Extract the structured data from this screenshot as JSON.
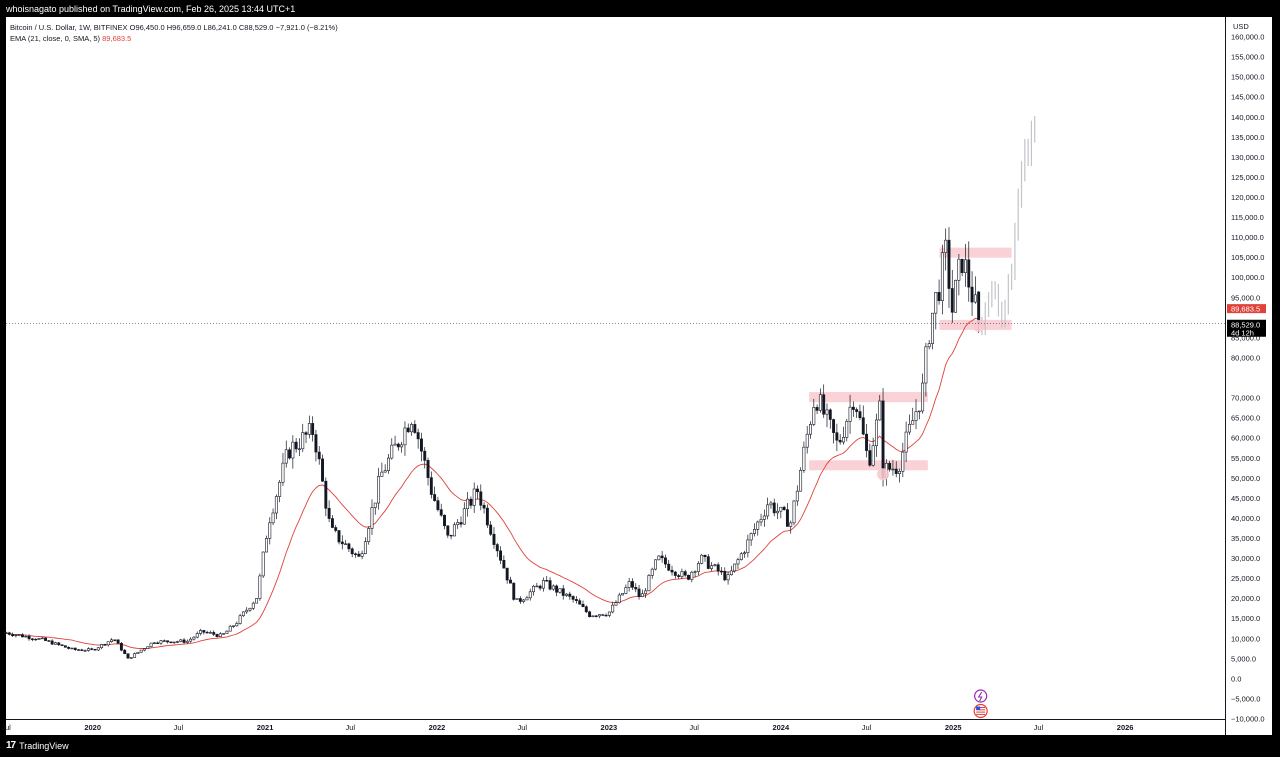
{
  "header": {
    "publish_line": "whoisnagato published on TradingView.com, Feb 26, 2025 13:44 UTC+1"
  },
  "legend": {
    "symbol_line": "Bitcoin / U.S. Dollar, 1W, BITFINEX  O96,450.0  H96,659.0  L86,241.0  C88,529.0  −7,921.0 (−8.21%)",
    "ema_label": "EMA (21, close, 0, SMA, 5)",
    "ema_value": "89,683.5"
  },
  "footer": {
    "brand": "TradingView",
    "logo_icon": "tradingview-logo-icon"
  },
  "colors": {
    "up": "#ffffff",
    "down": "#131722",
    "ema": "#e0413a",
    "zone": "#f8c9cf",
    "projection": "#c2c4c9",
    "price_badge": "#000000",
    "ema_badge": "#e0413a"
  },
  "chart_data": {
    "type": "candlestick",
    "currency": "USD",
    "scale": "linear",
    "ylim": [
      -10000,
      165000
    ],
    "y_ticks": [
      160000,
      155000,
      150000,
      145000,
      140000,
      135000,
      130000,
      125000,
      120000,
      115000,
      110000,
      105000,
      100000,
      95000,
      90000,
      85000,
      80000,
      70000,
      65000,
      60000,
      55000,
      50000,
      45000,
      40000,
      35000,
      30000,
      25000,
      20000,
      15000,
      10000,
      5000,
      0,
      -5000,
      -10000
    ],
    "y_tick_labels": [
      "160,000.0",
      "155,000.0",
      "150,000.0",
      "145,000.0",
      "140,000.0",
      "135,000.0",
      "130,000.0",
      "125,000.0",
      "120,000.0",
      "115,000.0",
      "110,000.0",
      "105,000.0",
      "100,000.0",
      "95,000.0",
      "",
      "85,000.0",
      "80,000.0",
      "70,000.0",
      "65,000.0",
      "60,000.0",
      "55,000.0",
      "50,000.0",
      "45,000.0",
      "40,000.0",
      "35,000.0",
      "30,000.0",
      "25,000.0",
      "20,000.0",
      "15,000.0",
      "10,000.0",
      "5,000.0",
      "0.0",
      "−5,000.0",
      "−10,000.0"
    ],
    "x_range": [
      "2019-07-01",
      "2026-08-01"
    ],
    "x_ticks": [
      {
        "date": "2019-07-01",
        "label": "Jul"
      },
      {
        "date": "2020-01-01",
        "label": "2020"
      },
      {
        "date": "2020-07-01",
        "label": "Jul"
      },
      {
        "date": "2021-01-01",
        "label": "2021"
      },
      {
        "date": "2021-07-01",
        "label": "Jul"
      },
      {
        "date": "2022-01-01",
        "label": "2022"
      },
      {
        "date": "2022-07-01",
        "label": "Jul"
      },
      {
        "date": "2023-01-01",
        "label": "2023"
      },
      {
        "date": "2023-07-01",
        "label": "Jul"
      },
      {
        "date": "2024-01-01",
        "label": "2024"
      },
      {
        "date": "2024-07-01",
        "label": "Jul"
      },
      {
        "date": "2025-01-01",
        "label": "2025"
      },
      {
        "date": "2025-07-01",
        "label": "Jul"
      },
      {
        "date": "2026-01-01",
        "label": "2026"
      }
    ],
    "anchors": [
      [
        "2019-07-01",
        11500
      ],
      [
        "2019-09-15",
        9800
      ],
      [
        "2019-11-20",
        7300
      ],
      [
        "2020-01-01",
        7200
      ],
      [
        "2020-02-15",
        10100
      ],
      [
        "2020-03-16",
        5000
      ],
      [
        "2020-05-10",
        9300
      ],
      [
        "2020-07-20",
        9400
      ],
      [
        "2020-08-20",
        11800
      ],
      [
        "2020-10-01",
        10700
      ],
      [
        "2020-11-01",
        14000
      ],
      [
        "2020-12-15",
        20500
      ],
      [
        "2021-01-08",
        39000
      ],
      [
        "2021-02-20",
        57000
      ],
      [
        "2021-04-14",
        62000
      ],
      [
        "2021-05-20",
        37000
      ],
      [
        "2021-07-20",
        30000
      ],
      [
        "2021-09-05",
        51000
      ],
      [
        "2021-11-10",
        66000
      ],
      [
        "2021-12-20",
        47000
      ],
      [
        "2022-01-24",
        35000
      ],
      [
        "2022-03-28",
        47000
      ],
      [
        "2022-06-18",
        19000
      ],
      [
        "2022-08-15",
        24000
      ],
      [
        "2022-10-20",
        19500
      ],
      [
        "2022-11-21",
        16000
      ],
      [
        "2023-01-01",
        16500
      ],
      [
        "2023-02-15",
        24000
      ],
      [
        "2023-03-10",
        20000
      ],
      [
        "2023-04-15",
        30000
      ],
      [
        "2023-06-15",
        25000
      ],
      [
        "2023-07-15",
        30000
      ],
      [
        "2023-09-11",
        25000
      ],
      [
        "2023-10-23",
        34000
      ],
      [
        "2023-12-05",
        44000
      ],
      [
        "2024-01-22",
        39000
      ],
      [
        "2024-02-28",
        62000
      ],
      [
        "2024-03-14",
        71000
      ],
      [
        "2024-05-01",
        58000
      ],
      [
        "2024-06-05",
        71000
      ],
      [
        "2024-07-05",
        54000
      ],
      [
        "2024-07-29",
        67000
      ],
      [
        "2024-08-05",
        52000
      ],
      [
        "2024-09-06",
        53000
      ],
      [
        "2024-10-28",
        72000
      ],
      [
        "2024-11-12",
        88000
      ],
      [
        "2024-12-17",
        106000
      ],
      [
        "2024-12-30",
        92000
      ],
      [
        "2025-01-20",
        105000
      ],
      [
        "2025-02-10",
        96000
      ],
      [
        "2025-02-24",
        88529
      ]
    ],
    "last_candle": {
      "open": 96450.0,
      "high": 96659.0,
      "low": 86241.0,
      "close": 88529.0,
      "change": -7921.0,
      "change_pct": -8.21
    },
    "ema": {
      "period": 21,
      "source": "close",
      "last": 89683.5
    },
    "price_badges": [
      {
        "value": 89683.5,
        "label": "89,683.5",
        "kind": "ema"
      },
      {
        "value": 88529.0,
        "label": "88,529.0",
        "kind": "last",
        "countdown": "4d 12h"
      }
    ],
    "zones": [
      {
        "from": "2024-03-01",
        "to": "2024-11-08",
        "y_low": 69000,
        "y_high": 71500
      },
      {
        "from": "2024-03-01",
        "to": "2024-11-08",
        "y_low": 52000,
        "y_high": 54500
      },
      {
        "from": "2024-12-03",
        "to": "2025-05-05",
        "y_low": 105000,
        "y_high": 107500
      },
      {
        "from": "2024-12-03",
        "to": "2025-05-05",
        "y_low": 87000,
        "y_high": 89500
      }
    ],
    "markers": [
      {
        "date": "2024-08-05",
        "value": 51000
      },
      {
        "date": "2025-02-24",
        "value": 88000
      }
    ],
    "projection": [
      [
        "2025-03-03",
        89000
      ],
      [
        "2025-03-24",
        97000
      ],
      [
        "2025-04-14",
        90000
      ],
      [
        "2025-05-05",
        104000
      ],
      [
        "2025-05-19",
        118000
      ],
      [
        "2025-06-02",
        130000
      ],
      [
        "2025-06-23",
        140000
      ]
    ],
    "event_icons": [
      {
        "date": "2025-02-24",
        "name": "lightning-event-icon"
      },
      {
        "date": "2025-02-24",
        "name": "us-flag-event-icon"
      }
    ]
  }
}
